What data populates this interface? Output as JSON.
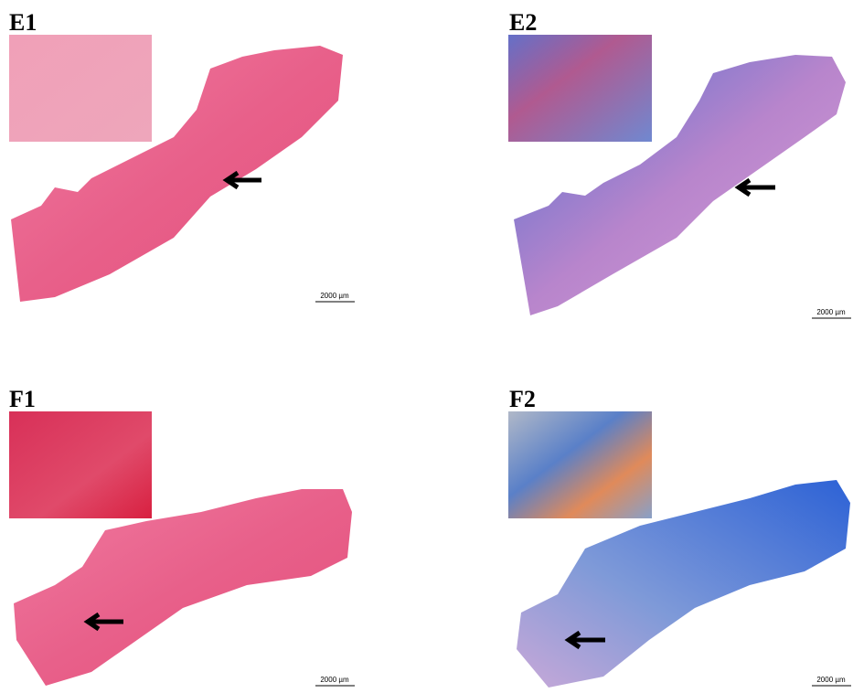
{
  "panels": [
    {
      "label": "E1",
      "scale_bar": "2000 µm"
    },
    {
      "label": "E2",
      "scale_bar": "2000 µm"
    },
    {
      "label": "F1",
      "scale_bar": "2000 µm"
    },
    {
      "label": "F2",
      "scale_bar": "2000 µm"
    }
  ]
}
